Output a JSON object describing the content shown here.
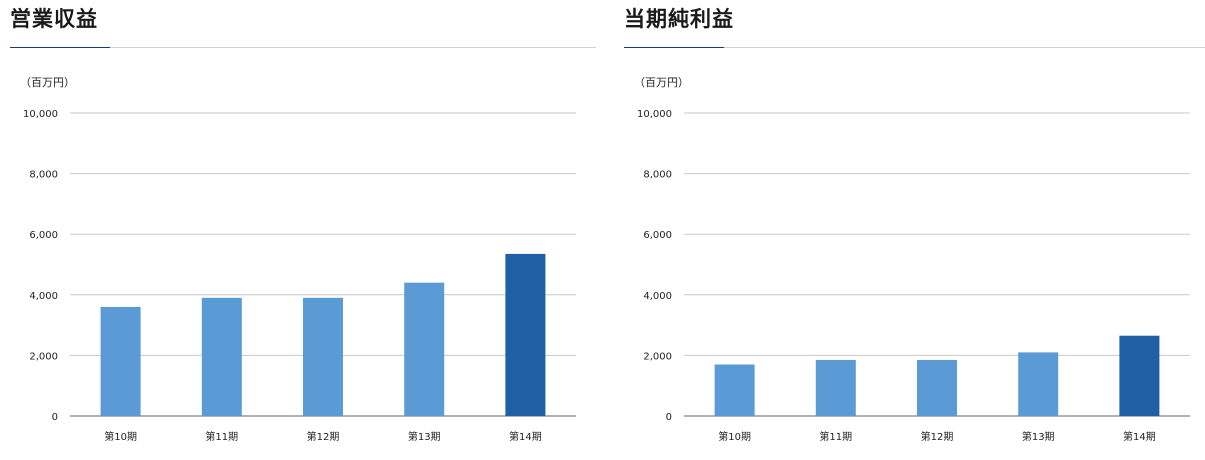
{
  "chart_data": [
    {
      "type": "bar",
      "title": "営業収益",
      "unit": "（百万円）",
      "categories": [
        "第10期",
        "第11期",
        "第12期",
        "第13期",
        "第14期"
      ],
      "values": [
        3600,
        3900,
        3900,
        4400,
        5350
      ],
      "ylim": [
        0,
        10000
      ],
      "yticks": [
        0,
        2000,
        4000,
        6000,
        8000,
        10000
      ],
      "ytick_labels": [
        "0",
        "2,000",
        "4,000",
        "6,000",
        "8,000",
        "10,000"
      ],
      "grid": true,
      "colors": {
        "bar": "#5b9bd5",
        "highlight": "#1f5fa3",
        "accent_rule": "#1b3a7a"
      },
      "highlight_index": 4
    },
    {
      "type": "bar",
      "title": "当期純利益",
      "unit": "（百万円）",
      "categories": [
        "第10期",
        "第11期",
        "第12期",
        "第13期",
        "第14期"
      ],
      "values": [
        1700,
        1850,
        1850,
        2100,
        2650
      ],
      "ylim": [
        0,
        10000
      ],
      "yticks": [
        0,
        2000,
        4000,
        6000,
        8000,
        10000
      ],
      "ytick_labels": [
        "0",
        "2,000",
        "4,000",
        "6,000",
        "8,000",
        "10,000"
      ],
      "grid": true,
      "colors": {
        "bar": "#5b9bd5",
        "highlight": "#1f5fa3",
        "accent_rule": "#1b3a7a"
      },
      "highlight_index": 4
    }
  ]
}
